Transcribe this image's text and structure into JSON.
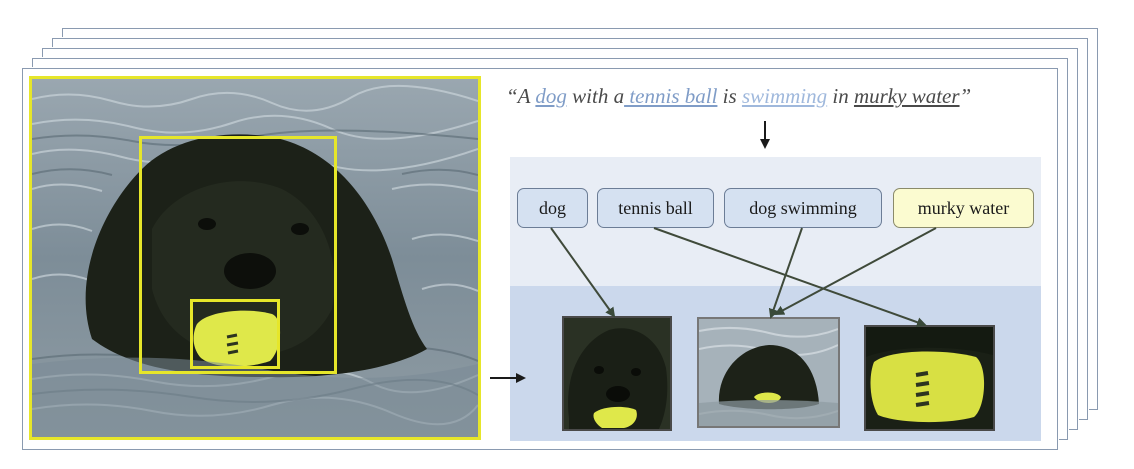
{
  "caption": {
    "open_quote": "“A ",
    "dog": "dog",
    "mid1": " with a",
    "tennis_ball": " tennis ball",
    "mid2": " is ",
    "swimming": "swimming",
    "mid3": " in ",
    "murky_water": "murky water",
    "close_quote": "”"
  },
  "phrases": [
    {
      "label": "dog"
    },
    {
      "label": "tennis ball"
    },
    {
      "label": "dog swimming"
    },
    {
      "label": "murky water"
    }
  ],
  "colors": {
    "box": "#e6e62a",
    "phrase_panel": "#e8edf5",
    "image_panel": "#cbd8ec",
    "chip": "#d5e1f1",
    "chip_highlight": "#fbfbd0"
  }
}
